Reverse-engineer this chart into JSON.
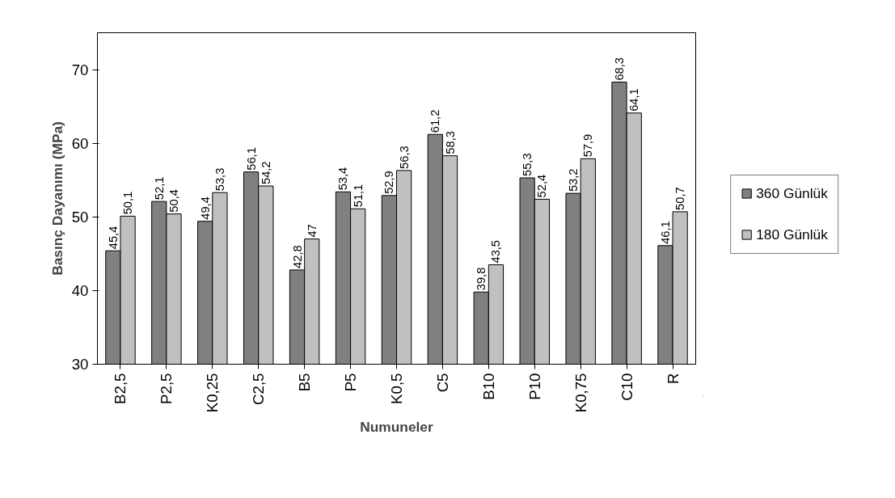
{
  "chart_data": {
    "type": "bar",
    "xlabel": "Numuneler",
    "ylabel": "Basınç Dayanımı (MPa)",
    "categories": [
      "B2,5",
      "P2,5",
      "K0,25",
      "C2,5",
      "B5",
      "P5",
      "K0,5",
      "C5",
      "B10",
      "P10",
      "K0,75",
      "C10",
      "R"
    ],
    "series": [
      {
        "name": "360 Günlük",
        "color": "#808080",
        "values": [
          45.4,
          52.1,
          49.4,
          56.1,
          42.8,
          53.4,
          52.9,
          61.2,
          39.8,
          55.3,
          53.2,
          68.3,
          46.1
        ],
        "value_labels": [
          "45,4",
          "52,1",
          "49,4",
          "56,1",
          "42,8",
          "53,4",
          "52,9",
          "61,2",
          "39,8",
          "55,3",
          "53,2",
          "68,3",
          "46,1"
        ]
      },
      {
        "name": "180 Günlük",
        "color": "#c0c0c0",
        "values": [
          50.1,
          50.4,
          53.3,
          54.2,
          47,
          51.1,
          56.3,
          58.3,
          43.5,
          52.4,
          57.9,
          64.1,
          50.7
        ],
        "value_labels": [
          "50,1",
          "50,4",
          "53,3",
          "54,2",
          "47",
          "51,1",
          "56,3",
          "58,3",
          "43,5",
          "52,4",
          "57,9",
          "64,1",
          "50,7"
        ]
      }
    ],
    "ylim": [
      30,
      75
    ],
    "yticks": [
      30,
      40,
      50,
      60,
      70
    ],
    "grid": false,
    "legend": "right"
  }
}
